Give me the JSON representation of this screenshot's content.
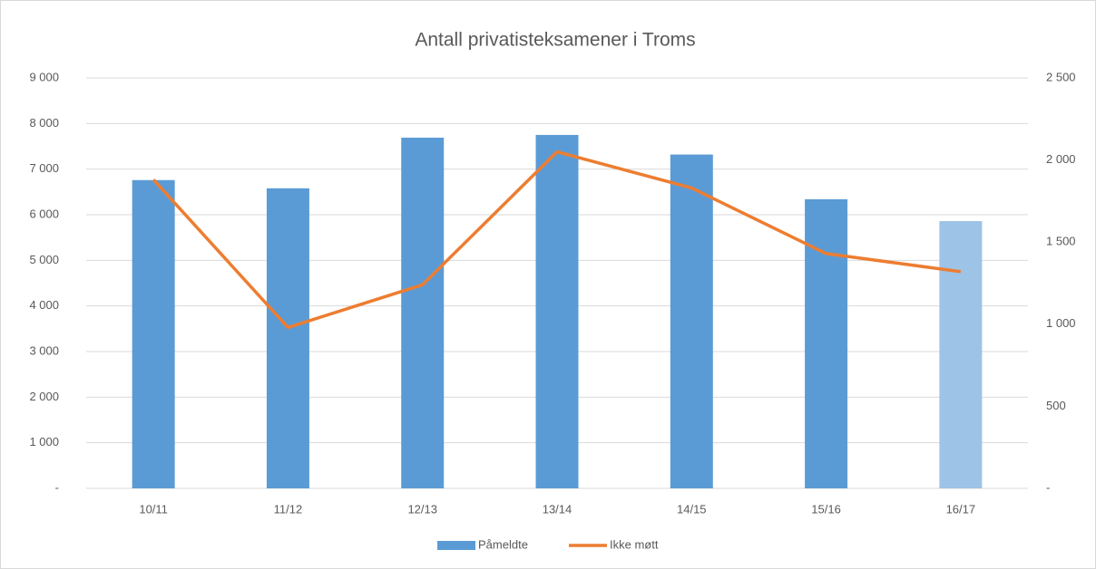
{
  "chart_data": {
    "type": "bar+line",
    "title": "Antall privatisteksamener i Troms",
    "categories": [
      "10/11",
      "11/12",
      "12/13",
      "13/14",
      "14/15",
      "15/16",
      "16/17"
    ],
    "series": [
      {
        "name": "Påmeldte",
        "type": "bar",
        "color": "#5b9bd5",
        "colors": [
          "#5b9bd5",
          "#5b9bd5",
          "#5b9bd5",
          "#5b9bd5",
          "#5b9bd5",
          "#5b9bd5",
          "#9dc3e6"
        ],
        "values": [
          6760,
          6580,
          7690,
          7750,
          7320,
          6340,
          5860
        ]
      },
      {
        "name": "Ikke møtt",
        "type": "line",
        "axis": "y2",
        "color": "#ed7d31",
        "values": [
          1880,
          980,
          1240,
          2050,
          1830,
          1430,
          1320
        ]
      }
    ],
    "ylim": [
      0,
      9000
    ],
    "yticks": [
      {
        "value": 0,
        "label": "-"
      },
      {
        "value": 1000,
        "label": "1 000"
      },
      {
        "value": 2000,
        "label": "2 000"
      },
      {
        "value": 3000,
        "label": "3 000"
      },
      {
        "value": 4000,
        "label": "4 000"
      },
      {
        "value": 5000,
        "label": "5 000"
      },
      {
        "value": 6000,
        "label": "6 000"
      },
      {
        "value": 7000,
        "label": "7 000"
      },
      {
        "value": 8000,
        "label": "8 000"
      },
      {
        "value": 9000,
        "label": "9 000"
      }
    ],
    "y2lim": [
      0,
      2500
    ],
    "y2ticks": [
      {
        "value": 0,
        "label": "-"
      },
      500,
      {
        "value": 1000,
        "label": "1 000"
      },
      {
        "value": 1500,
        "label": "1 500"
      },
      {
        "value": 2000,
        "label": "2 000"
      },
      {
        "value": 2500,
        "label": "2 500"
      }
    ],
    "grid": true,
    "legend": "bottom"
  }
}
